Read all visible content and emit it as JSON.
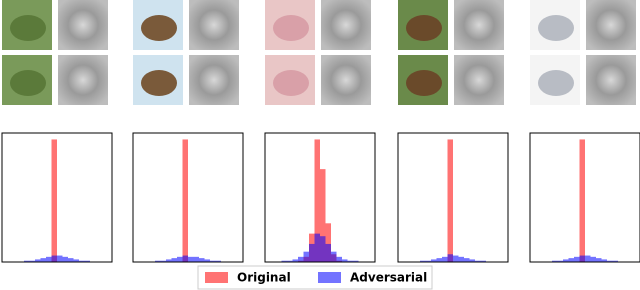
{
  "chart_data": {
    "type": "histogram",
    "bins": [
      -1,
      -0.9,
      -0.8,
      -0.7,
      -0.6,
      -0.5,
      -0.4,
      -0.3,
      -0.2,
      -0.1,
      0,
      0.1,
      0.2,
      0.3,
      0.4,
      0.5,
      0.6,
      0.7,
      0.8,
      0.9,
      1
    ],
    "xlim": [
      -1,
      1
    ],
    "ylim": [
      0,
      100
    ],
    "legend_position": "bottom",
    "series": [
      {
        "name": "Original",
        "color": "#ff0000",
        "values": [
          [
            0,
            0,
            0,
            0,
            0,
            0,
            0,
            0,
            0,
            95,
            0,
            0,
            0,
            0,
            0,
            0,
            0,
            0,
            0,
            0
          ],
          [
            0,
            0,
            0,
            0,
            0,
            0,
            0,
            0,
            0,
            95,
            0,
            0,
            0,
            0,
            0,
            0,
            0,
            0,
            0,
            0
          ],
          [
            0,
            0,
            0,
            0,
            0,
            0,
            1,
            4,
            22,
            95,
            72,
            30,
            6,
            1,
            0,
            0,
            0,
            0,
            0,
            0
          ],
          [
            0,
            0,
            0,
            0,
            0,
            0,
            0,
            0,
            0,
            95,
            0,
            0,
            0,
            0,
            0,
            0,
            0,
            0,
            0,
            0
          ],
          [
            0,
            0,
            0,
            0,
            0,
            0,
            0,
            0,
            0,
            95,
            0,
            0,
            0,
            0,
            0,
            0,
            0,
            0,
            0,
            0
          ]
        ]
      },
      {
        "name": "Adversarial",
        "color": "#0000ff",
        "values": [
          [
            0,
            0,
            0,
            0,
            1,
            1,
            2,
            3,
            4,
            5,
            5,
            4,
            3,
            2,
            1,
            1,
            0,
            0,
            0,
            0
          ],
          [
            0,
            0,
            0,
            0,
            1,
            1,
            2,
            3,
            4,
            5,
            4,
            4,
            3,
            2,
            1,
            1,
            0,
            0,
            0,
            0
          ],
          [
            0,
            0,
            0,
            1,
            1,
            2,
            4,
            8,
            14,
            22,
            20,
            14,
            8,
            4,
            2,
            1,
            1,
            0,
            0,
            0
          ],
          [
            0,
            0,
            0,
            0,
            1,
            1,
            2,
            3,
            4,
            6,
            5,
            4,
            3,
            2,
            1,
            1,
            0,
            0,
            0,
            0
          ],
          [
            0,
            0,
            0,
            0,
            1,
            1,
            2,
            3,
            4,
            5,
            5,
            4,
            3,
            2,
            1,
            1,
            0,
            0,
            0,
            0
          ]
        ]
      }
    ]
  }
}
